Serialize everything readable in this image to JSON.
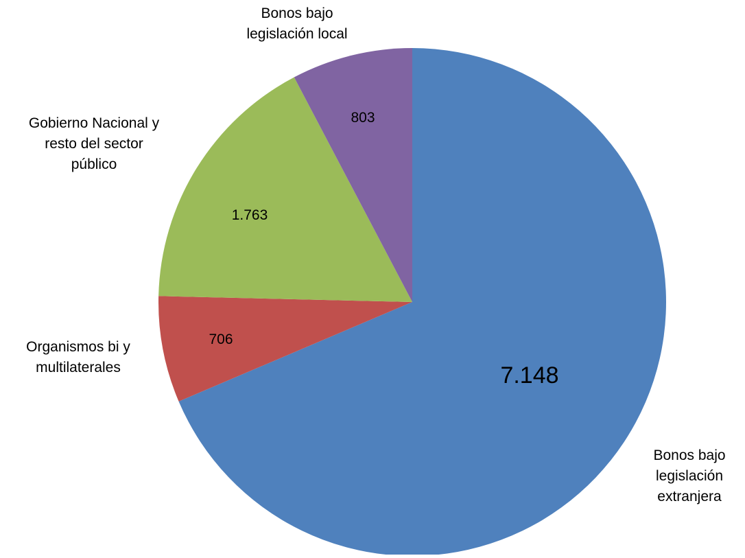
{
  "chart_data": {
    "type": "pie",
    "title": "",
    "categories": [
      "Bonos bajo legislación extranjera",
      "Organismos bi y multilaterales",
      "Gobierno Nacional y resto del sector público",
      "Bonos bajo legislación local"
    ],
    "values": [
      7148,
      706,
      1763,
      803
    ],
    "value_labels": [
      "7.148",
      "706",
      "1.763",
      "803"
    ],
    "colors": [
      "#4F81BD",
      "#C0504D",
      "#9BBB59",
      "#8064A2"
    ],
    "start_angle": "12 o'clock",
    "direction": "clockwise",
    "legend": "none",
    "category_label_lines": [
      [
        "Bonos bajo",
        "legislación",
        "extranjera"
      ],
      [
        "Organismos bi y",
        "multilaterales"
      ],
      [
        "Gobierno Nacional y",
        "resto del sector",
        "público"
      ],
      [
        "Bonos bajo",
        "legislación local"
      ]
    ]
  }
}
